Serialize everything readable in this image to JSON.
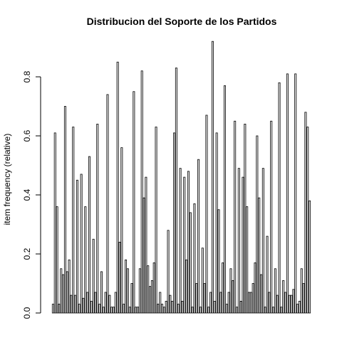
{
  "chart_data": {
    "type": "bar",
    "title": "Distribucion del Soporte de los Partidos",
    "xlabel": "",
    "ylabel": "item frequency (relative)",
    "ylim": [
      0,
      0.95
    ],
    "yticks": [
      0.0,
      0.2,
      0.4,
      0.6,
      0.8
    ],
    "ytick_labels": [
      "0.0",
      "0.2",
      "0.4",
      "0.6",
      "0.8"
    ],
    "grid": false,
    "bar_fill": "#e6e6e6",
    "bar_stroke": "#000000",
    "values": [
      0.03,
      0.61,
      0.36,
      0.03,
      0.15,
      0.13,
      0.7,
      0.14,
      0.18,
      0.06,
      0.63,
      0.06,
      0.45,
      0.03,
      0.47,
      0.05,
      0.36,
      0.07,
      0.53,
      0.04,
      0.25,
      0.07,
      0.64,
      0.03,
      0.14,
      0.02,
      0.07,
      0.74,
      0.06,
      0.02,
      0.02,
      0.07,
      0.85,
      0.24,
      0.56,
      0.03,
      0.18,
      0.15,
      0.02,
      0.1,
      0.75,
      0.02,
      0.02,
      0.15,
      0.82,
      0.39,
      0.46,
      0.16,
      0.09,
      0.11,
      0.17,
      0.63,
      0.03,
      0.07,
      0.03,
      0.02,
      0.04,
      0.28,
      0.06,
      0.04,
      0.61,
      0.83,
      0.03,
      0.49,
      0.04,
      0.46,
      0.18,
      0.48,
      0.34,
      0.02,
      0.37,
      0.1,
      0.52,
      0.02,
      0.22,
      0.1,
      0.67,
      0.02,
      0.07,
      0.92,
      0.04,
      0.61,
      0.35,
      0.07,
      0.17,
      0.77,
      0.03,
      0.07,
      0.15,
      0.11,
      0.65,
      0.02,
      0.49,
      0.04,
      0.46,
      0.64,
      0.36,
      0.07,
      0.07,
      0.1,
      0.17,
      0.6,
      0.39,
      0.13,
      0.49,
      0.02,
      0.26,
      0.07,
      0.65,
      0.02,
      0.15,
      0.06,
      0.78,
      0.02,
      0.11,
      0.07,
      0.81,
      0.06,
      0.06,
      0.08,
      0.81,
      0.03,
      0.04,
      0.15,
      0.1,
      0.68,
      0.63,
      0.38
    ]
  }
}
